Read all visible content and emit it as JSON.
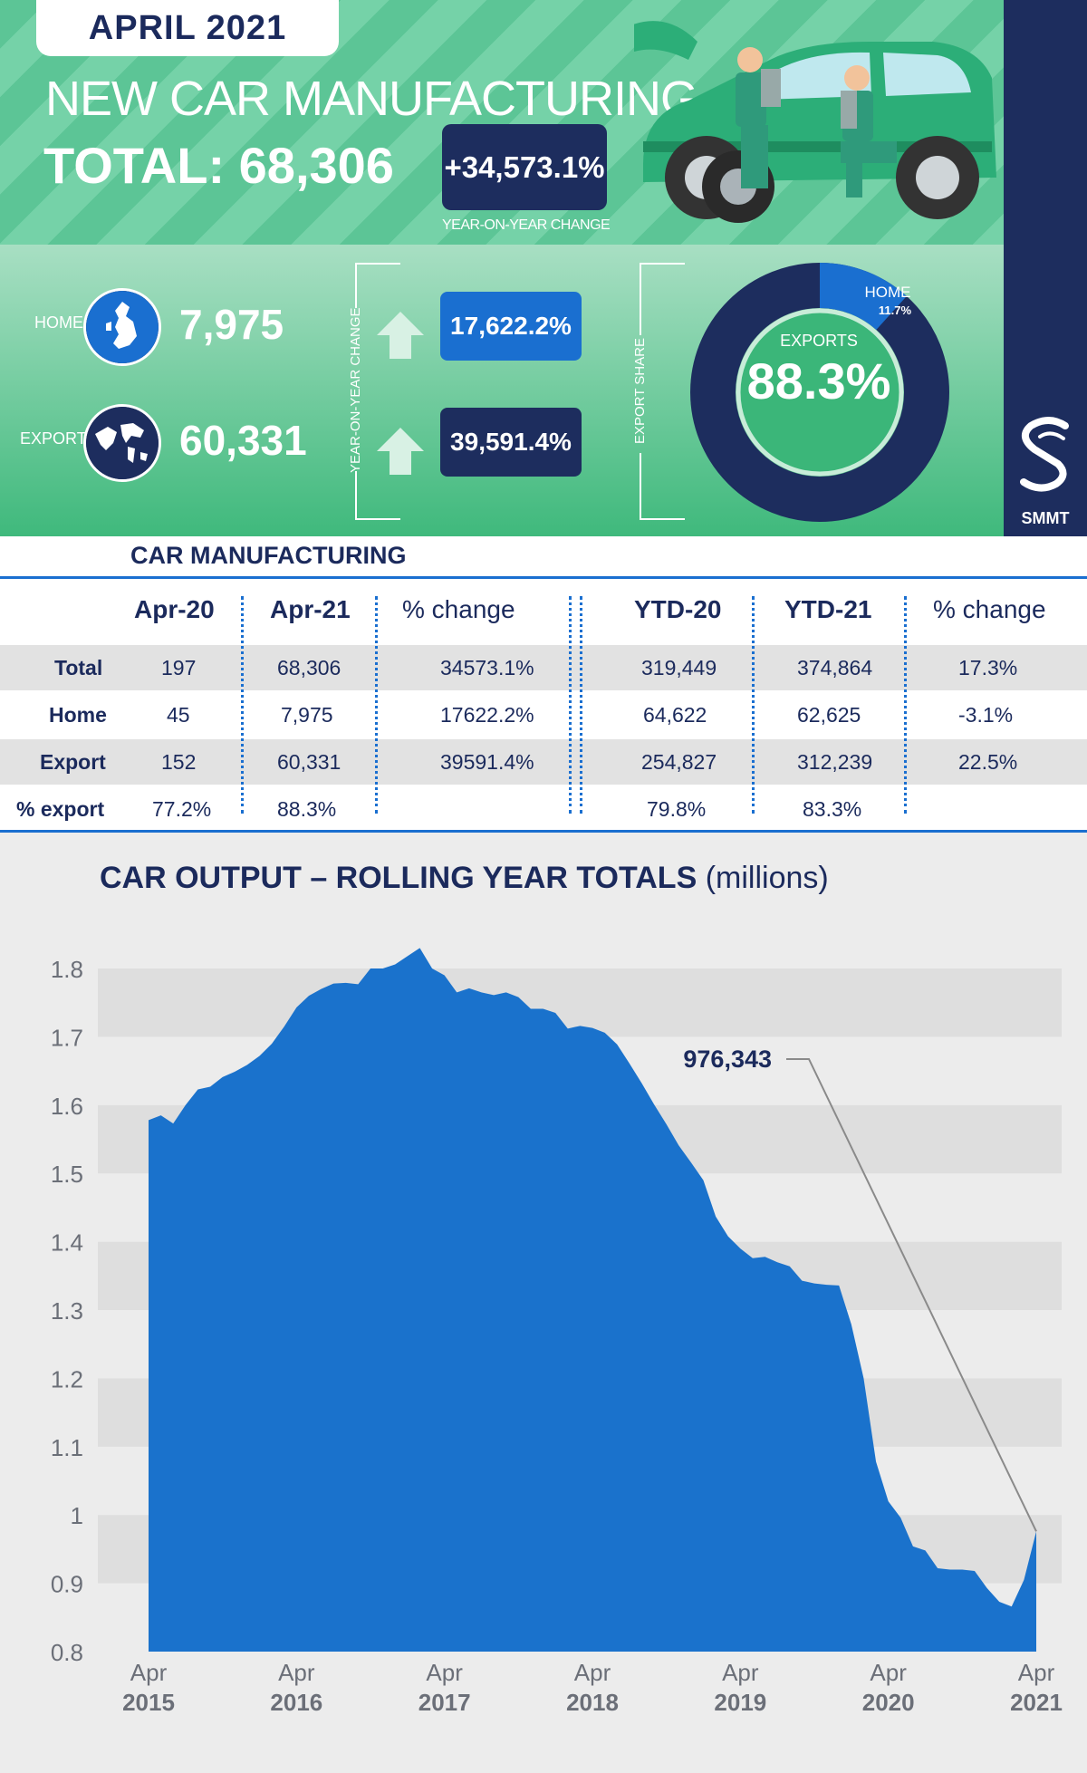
{
  "header": {
    "date": "APRIL 2021",
    "title": "NEW CAR MANUFACTURING",
    "total": "TOTAL: 68,306",
    "yoy_change": "+34,573.1%",
    "yoy_label": "YEAR-ON-YEAR CHANGE"
  },
  "summary": {
    "home_label": "HOME",
    "home_value": "7,975",
    "export_label": "EXPORT",
    "export_value": "60,331",
    "yoy_side_label": "YEAR-ON-YEAR CHANGE",
    "home_change": "17,622.2%",
    "export_change": "39,591.4%",
    "export_share_label": "EXPORT SHARE",
    "donut_home_label": "HOME",
    "donut_home_pct": "11.7%",
    "donut_exports_label": "EXPORTS",
    "donut_exports_pct": "88.3%",
    "home_fraction": 0.117
  },
  "brand": {
    "name": "SMMT"
  },
  "colors": {
    "navy": "#1d2d5e",
    "blue": "#1a6fd0",
    "green": "#3fb97c"
  },
  "table": {
    "title": "CAR MANUFACTURING",
    "headers": [
      "Apr-20",
      "Apr-21",
      "% change",
      "YTD-20",
      "YTD-21",
      "% change"
    ],
    "rows": [
      {
        "label": "Total",
        "cells": [
          "197",
          "68,306",
          "34573.1%",
          "319,449",
          "374,864",
          "17.3%"
        ]
      },
      {
        "label": "Home",
        "cells": [
          "45",
          "7,975",
          "17622.2%",
          "64,622",
          "62,625",
          "-3.1%"
        ]
      },
      {
        "label": "Export",
        "cells": [
          "152",
          "60,331",
          "39591.4%",
          "254,827",
          "312,239",
          "22.5%"
        ]
      },
      {
        "label": "% export",
        "cells": [
          "77.2%",
          "88.3%",
          "",
          "79.8%",
          "83.3%",
          ""
        ]
      }
    ]
  },
  "chart": {
    "title": "CAR OUTPUT – ROLLING YEAR TOTALS",
    "unit": "(millions)",
    "annotation": "976,343"
  },
  "chart_data": {
    "type": "area",
    "title": "CAR OUTPUT – ROLLING YEAR TOTALS (millions)",
    "xlabel": "",
    "ylabel": "",
    "ylim": [
      0.8,
      1.85
    ],
    "yticks": [
      0.8,
      0.9,
      1,
      1.1,
      1.2,
      1.3,
      1.4,
      1.5,
      1.6,
      1.7,
      1.8
    ],
    "xticks": [
      {
        "line1": "Apr",
        "line2": "2015",
        "index": 0
      },
      {
        "line1": "Apr",
        "line2": "2016",
        "index": 12
      },
      {
        "line1": "Apr",
        "line2": "2017",
        "index": 24
      },
      {
        "line1": "Apr",
        "line2": "2018",
        "index": 36
      },
      {
        "line1": "Apr",
        "line2": "2019",
        "index": 48
      },
      {
        "line1": "Apr",
        "line2": "2020",
        "index": 60
      },
      {
        "line1": "Apr",
        "line2": "2021",
        "index": 72
      }
    ],
    "grid": true,
    "series": [
      {
        "color": "#1a72cc",
        "values": [
          1.578,
          1.585,
          1.573,
          1.6,
          1.623,
          1.627,
          1.641,
          1.649,
          1.659,
          1.672,
          1.69,
          1.715,
          1.743,
          1.76,
          1.77,
          1.778,
          1.779,
          1.777,
          1.8,
          1.8,
          1.806,
          1.818,
          1.83,
          1.8,
          1.79,
          1.765,
          1.771,
          1.765,
          1.761,
          1.765,
          1.758,
          1.741,
          1.741,
          1.735,
          1.712,
          1.716,
          1.713,
          1.706,
          1.689,
          1.661,
          1.632,
          1.601,
          1.572,
          1.541,
          1.516,
          1.49,
          1.437,
          1.408,
          1.39,
          1.376,
          1.378,
          1.37,
          1.364,
          1.343,
          1.339,
          1.337,
          1.336,
          1.279,
          1.2,
          1.078,
          1.02,
          0.996,
          0.954,
          0.948,
          0.922,
          0.92,
          0.92,
          0.918,
          0.893,
          0.873,
          0.866,
          0.905,
          0.976
        ]
      }
    ]
  }
}
